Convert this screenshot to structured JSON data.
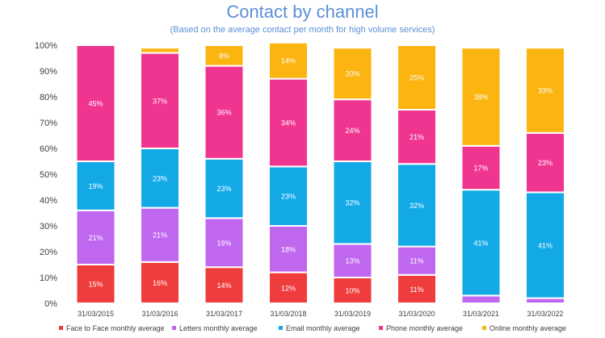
{
  "chart_data": {
    "type": "bar",
    "stacked": true,
    "title": "Contact by channel",
    "subtitle": "(Based on the average contact per month for high volume services)",
    "categories": [
      "31/03/2015",
      "31/03/2016",
      "31/03/2017",
      "31/03/2018",
      "31/03/2019",
      "31/03/2020",
      "31/03/2021",
      "31/03/2022"
    ],
    "ylim": [
      0,
      100
    ],
    "yticks": [
      "0%",
      "10%",
      "20%",
      "30%",
      "40%",
      "50%",
      "60%",
      "70%",
      "80%",
      "90%",
      "100%"
    ],
    "legend_position": "bottom",
    "grid": false,
    "series": [
      {
        "name": "Face to Face monthly average",
        "color": "#ef3c3c",
        "values": [
          15,
          16,
          14,
          12,
          10,
          11,
          0,
          0
        ],
        "labels": [
          "15%",
          "16%",
          "14%",
          "12%",
          "10%",
          "11%",
          "",
          ""
        ]
      },
      {
        "name": "Letters monthly average",
        "color": "#c067f0",
        "values": [
          21,
          21,
          19,
          18,
          13,
          11,
          3,
          2
        ],
        "labels": [
          "21%",
          "21%",
          "19%",
          "18%",
          "13%",
          "11%",
          "",
          ""
        ]
      },
      {
        "name": "Email monthly average",
        "color": "#12a9e6",
        "values": [
          19,
          23,
          23,
          23,
          32,
          32,
          41,
          41
        ],
        "labels": [
          "19%",
          "23%",
          "23%",
          "23%",
          "32%",
          "32%",
          "41%",
          "41%"
        ]
      },
      {
        "name": "Phone monthly average",
        "color": "#f03591",
        "values": [
          45,
          37,
          36,
          34,
          24,
          21,
          17,
          23
        ],
        "labels": [
          "45%",
          "37%",
          "36%",
          "34%",
          "24%",
          "21%",
          "17%",
          "23%"
        ]
      },
      {
        "name": "Online monthly average",
        "color": "#fbb410",
        "values": [
          0,
          2,
          8,
          14,
          20,
          25,
          38,
          33
        ],
        "labels": [
          "",
          "",
          "8%",
          "14%",
          "20%",
          "25%",
          "38%",
          "33%"
        ]
      }
    ]
  }
}
